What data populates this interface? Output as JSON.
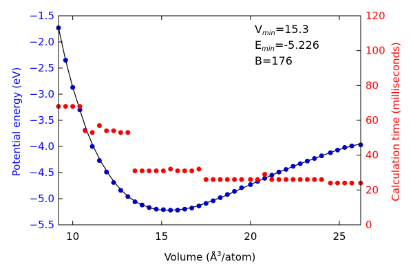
{
  "chart_data": {
    "type": "scatter",
    "xlabel_prefix": "Volume (",
    "xlabel_unit": "Å",
    "xlabel_exp": "3",
    "xlabel_suffix": "/atom)",
    "ylabel_left": "Potential energy (eV)",
    "ylabel_right": "Calculation time (milliseconds)",
    "xlim": [
      9.2,
      26.2
    ],
    "ylim_left": [
      -5.5,
      -1.5
    ],
    "ylim_right": [
      0,
      120
    ],
    "x_ticks": [
      10,
      15,
      20,
      25
    ],
    "y_left_ticks": [
      -5.5,
      -5.0,
      -4.5,
      -4.0,
      -3.5,
      -3.0,
      -2.5,
      -2.0,
      -1.5
    ],
    "y_left_tick_labels": [
      "−5.5",
      "−5.0",
      "−4.5",
      "−4.0",
      "−3.5",
      "−3.0",
      "−2.5",
      "−2.0",
      "−1.5"
    ],
    "y_right_ticks": [
      0,
      20,
      40,
      60,
      80,
      100,
      120
    ],
    "grid": false,
    "colors": {
      "energy": "#0000cc",
      "time": "#ff0000",
      "fit": "#000000",
      "left_axis": "#0000ff",
      "right_axis": "#ff0000"
    },
    "annotation": {
      "v_prefix": "V",
      "v_sub": "min",
      "v_value": "=15.3",
      "e_prefix": "E",
      "e_sub": "min",
      "e_value": "=-5.226",
      "b_text": "B=176"
    },
    "series": [
      {
        "axis": "left",
        "marker": "dot",
        "x": [
          9.2,
          9.6,
          10.0,
          10.4,
          10.7,
          11.1,
          11.5,
          11.9,
          12.3,
          12.7,
          13.1,
          13.5,
          13.9,
          14.3,
          14.7,
          15.1,
          15.5,
          15.9,
          16.3,
          16.7,
          17.1,
          17.5,
          17.9,
          18.3,
          18.7,
          19.1,
          19.5,
          20.0,
          20.4,
          20.8,
          21.2,
          21.6,
          22.0,
          22.4,
          22.8,
          23.2,
          23.6,
          24.0,
          24.5,
          24.9,
          25.3,
          25.7,
          26.2
        ],
        "y": [
          -1.73,
          -2.35,
          -2.87,
          -3.3,
          -3.69,
          -4.0,
          -4.27,
          -4.49,
          -4.69,
          -4.84,
          -4.96,
          -5.06,
          -5.12,
          -5.17,
          -5.2,
          -5.21,
          -5.22,
          -5.22,
          -5.2,
          -5.18,
          -5.14,
          -5.09,
          -5.04,
          -4.98,
          -4.92,
          -4.86,
          -4.79,
          -4.73,
          -4.67,
          -4.61,
          -4.55,
          -4.49,
          -4.44,
          -4.38,
          -4.33,
          -4.28,
          -4.23,
          -4.18,
          -4.12,
          -4.07,
          -4.02,
          -3.99,
          -3.97
        ]
      },
      {
        "axis": "right",
        "marker": "dot",
        "x": [
          9.2,
          9.6,
          10.0,
          10.4,
          10.7,
          11.1,
          11.5,
          11.9,
          12.3,
          12.7,
          13.1,
          13.5,
          13.9,
          14.3,
          14.7,
          15.1,
          15.5,
          15.9,
          16.3,
          16.7,
          17.1,
          17.5,
          17.9,
          18.3,
          18.7,
          19.1,
          19.5,
          20.0,
          20.4,
          20.8,
          21.2,
          21.6,
          22.0,
          22.4,
          22.8,
          23.2,
          23.6,
          24.0,
          24.5,
          24.9,
          25.3,
          25.7,
          26.2
        ],
        "y": [
          68,
          68,
          68,
          68,
          54,
          53,
          57,
          54,
          54,
          53,
          53,
          31,
          31,
          31,
          31,
          31,
          32,
          31,
          31,
          31,
          32,
          26,
          26,
          26,
          26,
          26,
          26,
          26,
          26,
          29,
          26,
          26,
          26,
          26,
          26,
          26,
          26,
          26,
          24,
          24,
          24,
          24,
          24
        ]
      }
    ],
    "fit": {
      "axis": "left",
      "curve": "equation_of_state",
      "x": [
        9.2,
        9.6,
        10.0,
        10.4,
        10.8,
        11.2,
        11.6,
        12.0,
        12.4,
        12.8,
        13.2,
        13.6,
        14.0,
        14.4,
        14.8,
        15.2,
        15.6,
        16.0,
        16.4,
        16.8,
        17.2,
        17.6,
        18.0,
        18.4,
        18.8,
        19.2,
        19.6,
        20.0,
        20.4,
        20.8,
        21.2,
        21.6,
        22.0,
        22.4,
        22.8,
        23.2,
        23.6,
        24.0,
        24.4,
        24.8,
        25.2,
        25.6,
        26.2
      ],
      "y": [
        -1.73,
        -2.35,
        -2.87,
        -3.3,
        -3.71,
        -4.03,
        -4.3,
        -4.52,
        -4.71,
        -4.86,
        -4.98,
        -5.07,
        -5.13,
        -5.18,
        -5.21,
        -5.22,
        -5.22,
        -5.21,
        -5.19,
        -5.16,
        -5.12,
        -5.07,
        -5.02,
        -4.97,
        -4.91,
        -4.85,
        -4.79,
        -4.73,
        -4.67,
        -4.61,
        -4.55,
        -4.49,
        -4.44,
        -4.38,
        -4.33,
        -4.28,
        -4.23,
        -4.18,
        -4.13,
        -4.08,
        -4.04,
        -4.0,
        -3.95
      ]
    }
  }
}
